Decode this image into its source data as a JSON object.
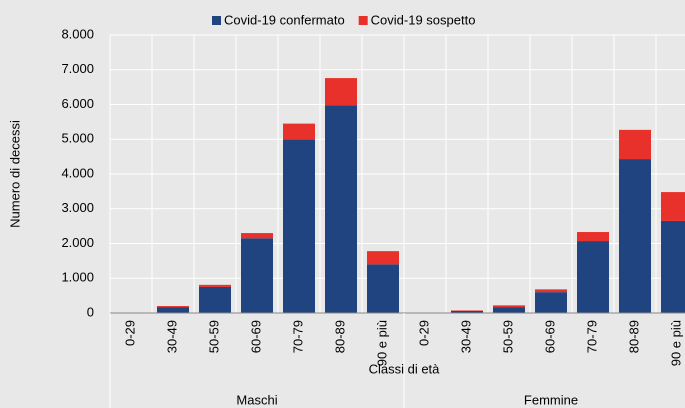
{
  "chart_data": {
    "type": "stacked_bar",
    "y_label": "Numero di decessi",
    "x_label": "Classi di età",
    "groups": [
      "Maschi",
      "Femmine"
    ],
    "categories": [
      "0-29",
      "30-49",
      "50-59",
      "60-69",
      "70-79",
      "80-89",
      "90 e più",
      "0-29",
      "30-49",
      "50-59",
      "60-69",
      "70-79",
      "80-89",
      "90 e più"
    ],
    "series": [
      {
        "name": "Covid-19 confermato",
        "color": "#1f4480",
        "values": [
          10,
          170,
          750,
          2150,
          5000,
          5980,
          1400,
          5,
          60,
          170,
          600,
          2070,
          4430,
          2650
        ]
      },
      {
        "name": "Covid-19 sospetto",
        "color": "#e8312a",
        "values": [
          2,
          30,
          60,
          150,
          450,
          780,
          380,
          1,
          15,
          50,
          80,
          260,
          840,
          830
        ]
      }
    ],
    "ylim": [
      0,
      8000
    ],
    "yticks": [
      {
        "value": 0,
        "label": "0"
      },
      {
        "value": 1000,
        "label": "1.000"
      },
      {
        "value": 2000,
        "label": "2.000"
      },
      {
        "value": 3000,
        "label": "3.000"
      },
      {
        "value": 4000,
        "label": "4.000"
      },
      {
        "value": 5000,
        "label": "5.000"
      },
      {
        "value": 6000,
        "label": "6.000"
      },
      {
        "value": 7000,
        "label": "7.000"
      },
      {
        "value": 8000,
        "label": "8.000"
      }
    ],
    "grid": true,
    "legend": "top"
  }
}
